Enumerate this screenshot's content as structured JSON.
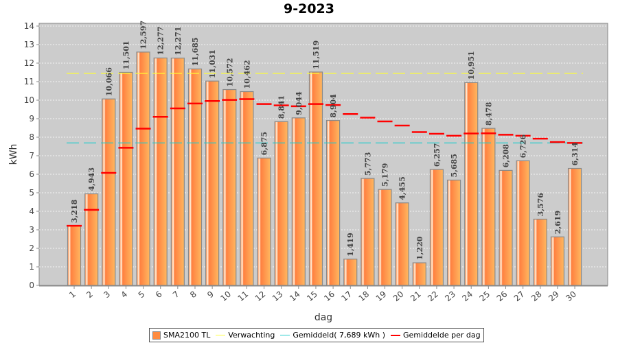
{
  "chart_data": {
    "type": "bar",
    "title": "9-2023",
    "xlabel": "dag",
    "ylabel": "kWh",
    "ylim": [
      0,
      14
    ],
    "yticks": [
      "0",
      "1",
      "2",
      "3",
      "4",
      "5",
      "6",
      "7",
      "8",
      "9",
      "10",
      "11",
      "12",
      "13",
      "14"
    ],
    "categories": [
      "1",
      "2",
      "3",
      "4",
      "5",
      "6",
      "7",
      "8",
      "9",
      "10",
      "11",
      "12",
      "13",
      "14",
      "15",
      "16",
      "17",
      "18",
      "19",
      "20",
      "21",
      "22",
      "23",
      "24",
      "25",
      "26",
      "27",
      "28",
      "29",
      "30"
    ],
    "series": [
      {
        "name": "SMA2100 TL",
        "type": "bar",
        "color": "#ff8c40",
        "values": [
          3.218,
          4.943,
          10.066,
          11.501,
          12.597,
          12.277,
          12.271,
          11.685,
          11.031,
          10.572,
          10.462,
          6.875,
          8.841,
          9.044,
          11.519,
          8.904,
          1.419,
          5.773,
          5.179,
          4.455,
          1.22,
          6.257,
          5.685,
          10.951,
          8.478,
          6.208,
          6.726,
          3.576,
          2.619,
          6.314
        ],
        "labels": [
          "3,218",
          "4,943",
          "10,066",
          "11,501",
          "12,597",
          "12,277",
          "12,271",
          "11,685",
          "11,031",
          "10,572",
          "10,462",
          "6,875",
          "8,841",
          "9,044",
          "11,519",
          "8,904",
          "1,419",
          "5,773",
          "5,179",
          "4,455",
          "1,220",
          "6,257",
          "5,685",
          "10,951",
          "8,478",
          "6,208",
          "6,726",
          "3,576",
          "2,619",
          "6,314"
        ]
      },
      {
        "name": "Verwachting",
        "type": "line",
        "color": "#ffff33",
        "value": 11.45
      },
      {
        "name": "Gemiddeld( 7,689 kWh )",
        "type": "line",
        "color": "#22cccc",
        "value": 7.689
      },
      {
        "name": "Gemiddelde per dag",
        "type": "step",
        "color": "#ff0000",
        "description": "running average"
      }
    ],
    "grid": true,
    "legend": "bottom"
  }
}
